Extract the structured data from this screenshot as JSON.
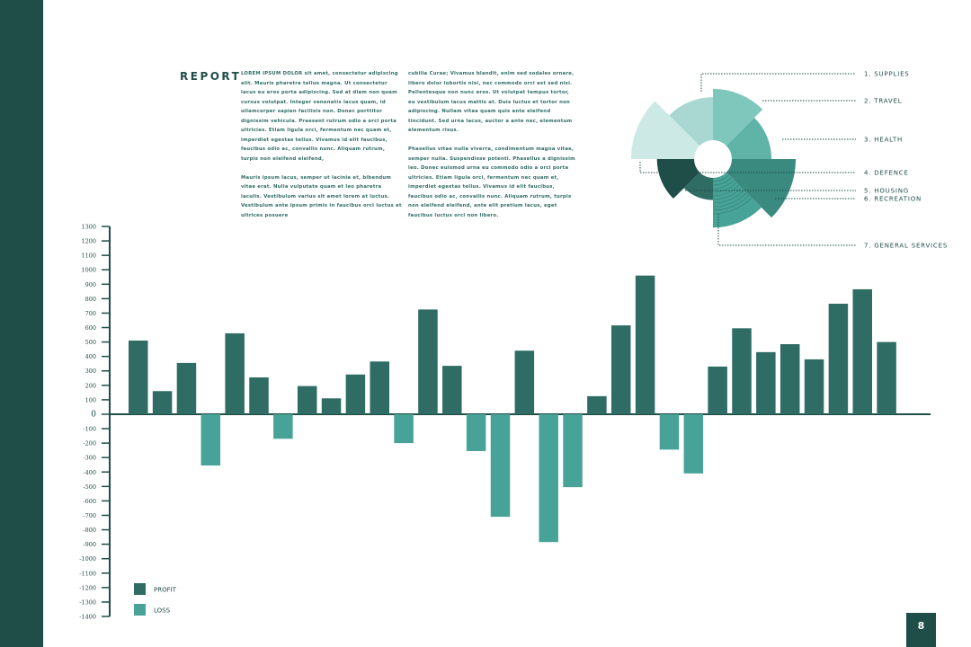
{
  "report_title": "REPORT",
  "body_text": {
    "col1": [
      "LOREM IPSUM DOLOR sit amet, consectetur adipiscing elit. Mauris pharetra tellus magna. Ut consectetur lacus eu eros porta adipiscing. Sed at diam non quam cursus volutpat. Integer venenatis lacus quam, id ullamcorper sapien facilisis non. Donec porttitor dignissim vehicula. Praesent rutrum odio a orci porta ultricies. Etiam ligula orci, fermentum nec quam et, imperdiet egestas tellus. Vivamus id elit faucibus, faucibus odio ac, convallis nunc. Aliquam rutrum, turpis non eleifend eleifend,",
      "Mauris ipsum lacus, semper ut lacinia et, bibendum vitae erat. Nulla vulputate quam et leo pharetra iaculis. Vestibulum varius sit amet lorem at luctus. Vestibulum ante ipsum primis in faucibus orci luctus et ultrices posuere"
    ],
    "col2": [
      "cubilia Curae; Vivamus blandit, enim sed sodales ornare, libero dolor lobortis nisi, nec commodo orci est sed nisi. Pellentesque non nunc eros. Ut volutpat tempus tortor, eu vestibulum lacus mattis at. Duis luctus et tortor non adipiscing. Nullam vitae quam quis ante eleifend tincidunt. Sed urna lacus, auctor a ante nec, elementum elementum risus.",
      "Phasellus vitae nulla viverra, condimentum magna vitae, semper nulla. Suspendisse potenti. Phasellus a dignissim leo. Donec euismod urna eu commodo odio a orci porta ultricies. Etiam ligula orci, fermentum nec quam et, imperdiet egestas tellus. Vivamus id elit faucibus, faucibus odio ac, convallis nunc. Aliquam rutrum, turpis non eleifend eleifend, ante elit pretium lacus, eget faucibus luctus orci non libero."
    ]
  },
  "page_number": "8",
  "colors": {
    "sidebar": "#1f4d47",
    "profit": "#2e6c64",
    "loss": "#47a397",
    "axis": "#1f4d47"
  },
  "chart_data": [
    {
      "type": "bar",
      "title": "",
      "xlabel": "",
      "ylabel": "",
      "ylim": [
        -1400,
        1300
      ],
      "yticks": [
        1300,
        1200,
        1100,
        1000,
        900,
        800,
        700,
        600,
        500,
        400,
        300,
        200,
        100,
        0,
        -100,
        -200,
        -300,
        -400,
        -500,
        -600,
        -700,
        -800,
        -900,
        -1000,
        -1100,
        -1200,
        -1300,
        -1400
      ],
      "legend": {
        "position": "bottom-left",
        "entries": [
          "PROFIT",
          "LOSS"
        ]
      },
      "values": [
        510,
        160,
        355,
        -355,
        560,
        255,
        -170,
        195,
        110,
        275,
        365,
        -200,
        725,
        335,
        -255,
        -710,
        440,
        -885,
        -505,
        125,
        615,
        960,
        -245,
        -410,
        330,
        595,
        430,
        485,
        380,
        765,
        865,
        500
      ]
    },
    {
      "type": "pie",
      "title": "",
      "style": "polar-area",
      "categories": [
        "1. SUPPLIES",
        "2. TRAVEL",
        "3. HEALTH",
        "4. DEFENCE",
        "5. HOUSING",
        "6. RECREATION",
        "7. GENERAL SERVICES"
      ],
      "slices": [
        {
          "label": "1. SUPPLIES",
          "share": 0.125,
          "magnitude": 0.84,
          "color": "#7fc7bd"
        },
        {
          "label": "2. TRAVEL",
          "share": 0.125,
          "magnitude": 0.7,
          "color": "#5fb3a7"
        },
        {
          "label": "3. HEALTH",
          "share": 0.125,
          "magnitude": 0.99,
          "color": "#3a8a80"
        },
        {
          "label": "4. DEFENCE",
          "share": 0.125,
          "magnitude": 0.82,
          "color": "#47a397"
        },
        {
          "label": "5. HOUSING",
          "share": 0.125,
          "magnitude": 0.49,
          "color": "#2e6c64"
        },
        {
          "label": "6. RECREATION",
          "share": 0.125,
          "magnitude": 0.67,
          "color": "#1f4d47"
        },
        {
          "label": "7. GENERAL SERVICES",
          "share": 0.25,
          "magnitude": 0.98,
          "color": "#cde9e5"
        }
      ]
    }
  ]
}
